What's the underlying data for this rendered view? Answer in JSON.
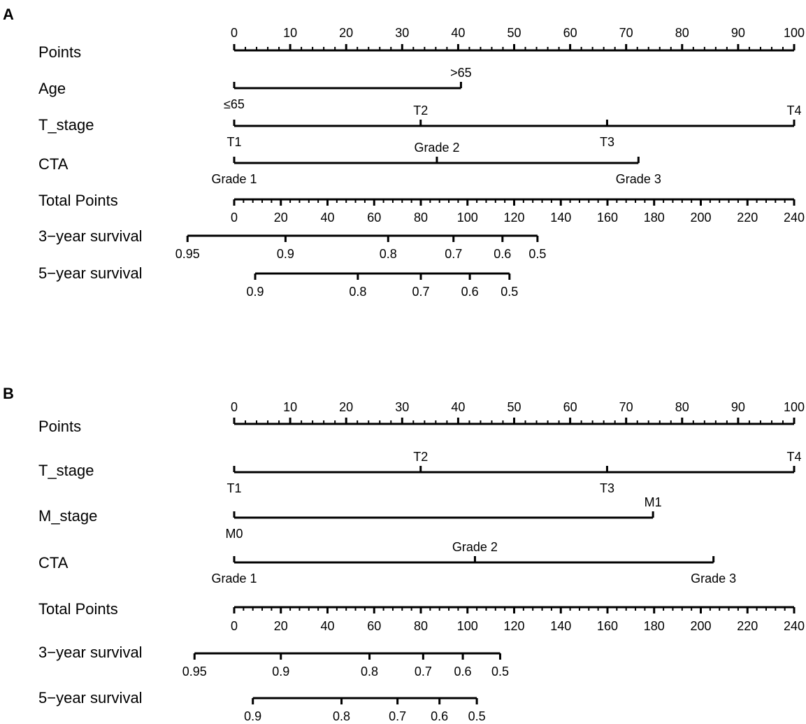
{
  "chart_data": [
    {
      "type": "nomogram",
      "panel": "A",
      "points_ticks": [
        0,
        10,
        20,
        30,
        40,
        50,
        60,
        70,
        80,
        90,
        100
      ],
      "points_label": "Points",
      "total_points_label": "Total Points",
      "total_points_ticks": [
        0,
        20,
        40,
        60,
        80,
        100,
        120,
        140,
        160,
        180,
        200,
        220,
        240
      ],
      "variables": [
        {
          "name": "Age",
          "levels": [
            {
              "label": "≤65",
              "points": 0
            },
            {
              "label": ">65",
              "points": 40.5
            }
          ]
        },
        {
          "name": "T_stage",
          "levels": [
            {
              "label": "T1",
              "points": 0
            },
            {
              "label": "T2",
              "points": 33.3
            },
            {
              "label": "T3",
              "points": 66.6
            },
            {
              "label": "T4",
              "points": 100
            }
          ]
        },
        {
          "name": "CTA",
          "levels": [
            {
              "label": "Grade 1",
              "points": 0
            },
            {
              "label": "Grade 2",
              "points": 36.2
            },
            {
              "label": "Grade 3",
              "points": 72.2
            }
          ]
        }
      ],
      "survival": [
        {
          "name": "3−year survival",
          "ticks": [
            {
              "label": "0.95",
              "total_points": -20
            },
            {
              "label": "0.9",
              "total_points": 22
            },
            {
              "label": "0.8",
              "total_points": 66
            },
            {
              "label": "0.7",
              "total_points": 94
            },
            {
              "label": "0.6",
              "total_points": 115
            },
            {
              "label": "0.5",
              "total_points": 130
            }
          ]
        },
        {
          "name": "5−year survival",
          "ticks": [
            {
              "label": "0.9",
              "total_points": 9
            },
            {
              "label": "0.8",
              "total_points": 53
            },
            {
              "label": "0.7",
              "total_points": 80
            },
            {
              "label": "0.6",
              "total_points": 101
            },
            {
              "label": "0.5",
              "total_points": 118
            }
          ]
        }
      ]
    },
    {
      "type": "nomogram",
      "panel": "B",
      "points_ticks": [
        0,
        10,
        20,
        30,
        40,
        50,
        60,
        70,
        80,
        90,
        100
      ],
      "points_label": "Points",
      "total_points_label": "Total Points",
      "total_points_ticks": [
        0,
        20,
        40,
        60,
        80,
        100,
        120,
        140,
        160,
        180,
        200,
        220,
        240
      ],
      "variables": [
        {
          "name": "T_stage",
          "levels": [
            {
              "label": "T1",
              "points": 0
            },
            {
              "label": "T2",
              "points": 33.3
            },
            {
              "label": "T3",
              "points": 66.6
            },
            {
              "label": "T4",
              "points": 100
            }
          ]
        },
        {
          "name": "M_stage",
          "levels": [
            {
              "label": "M0",
              "points": 0
            },
            {
              "label": "M1",
              "points": 74.8
            }
          ]
        },
        {
          "name": "CTA",
          "levels": [
            {
              "label": "Grade 1",
              "points": 0
            },
            {
              "label": "Grade 2",
              "points": 43
            },
            {
              "label": "Grade 3",
              "points": 85.6
            }
          ]
        }
      ],
      "survival": [
        {
          "name": "3−year survival",
          "ticks": [
            {
              "label": "0.95",
              "total_points": -17
            },
            {
              "label": "0.9",
              "total_points": 20
            },
            {
              "label": "0.8",
              "total_points": 58
            },
            {
              "label": "0.7",
              "total_points": 81
            },
            {
              "label": "0.6",
              "total_points": 98
            },
            {
              "label": "0.5",
              "total_points": 114
            }
          ]
        },
        {
          "name": "5−year survival",
          "ticks": [
            {
              "label": "0.9",
              "total_points": 8
            },
            {
              "label": "0.8",
              "total_points": 46
            },
            {
              "label": "0.7",
              "total_points": 70
            },
            {
              "label": "0.6",
              "total_points": 88
            },
            {
              "label": "0.5",
              "total_points": 104
            }
          ]
        }
      ]
    }
  ]
}
